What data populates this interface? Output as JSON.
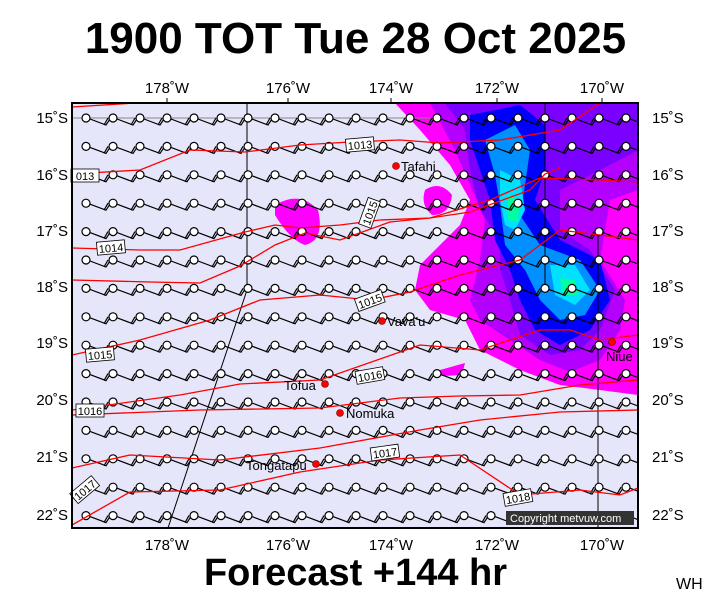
{
  "header": {
    "title": "1900 TOT Tue 28 Oct 2025"
  },
  "footer": {
    "forecast": "Forecast +144 hr",
    "initials": "WH",
    "copyright": "Copyright metvuw.com"
  },
  "axes": {
    "lon_top": [
      "178˚W",
      "176˚W",
      "174˚W",
      "172˚W",
      "170˚W"
    ],
    "lon_bottom": [
      "178˚W",
      "176˚W",
      "174˚W",
      "172˚W",
      "170˚W"
    ],
    "lat_left": [
      "15˚S",
      "16˚S",
      "17˚S",
      "18˚S",
      "19˚S",
      "20˚S",
      "21˚S",
      "22˚S"
    ],
    "lat_right": [
      "15˚S",
      "16˚S",
      "17˚S",
      "18˚S",
      "19˚S",
      "20˚S",
      "21˚S",
      "22˚S"
    ]
  },
  "places": [
    {
      "name": "Tafahi"
    },
    {
      "name": "Vava'u"
    },
    {
      "name": "Niue"
    },
    {
      "name": "Tofua"
    },
    {
      "name": "Nomuka"
    },
    {
      "name": "Tongatapu"
    }
  ],
  "isobar_labels": [
    "1013",
    "013",
    "1015",
    "1014",
    "1015",
    "1015",
    "1016",
    "1016",
    "1017",
    "1017",
    "1018"
  ],
  "colors": {
    "sea": "#e6e6fa",
    "isobar": "#ff0000",
    "rain1": "#ff00ff",
    "rain2": "#b400ff",
    "rain3": "#7a00ff",
    "rain4": "#0000ff",
    "rain5": "#0090ff",
    "rain6": "#00e0ff",
    "rain7": "#00ffa0"
  }
}
